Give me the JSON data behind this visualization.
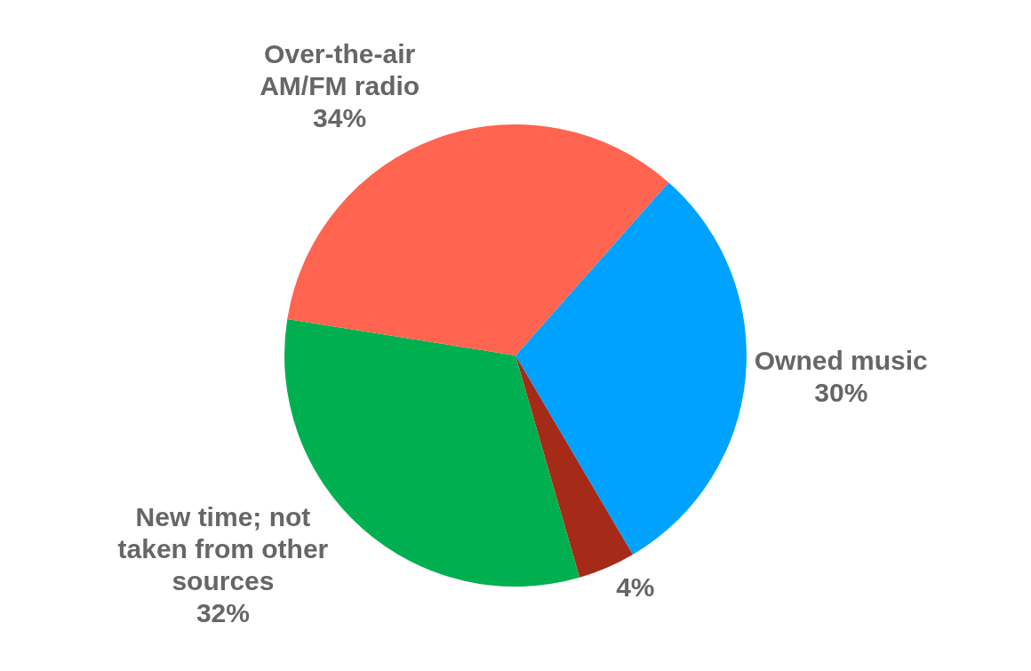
{
  "chart_data": {
    "type": "pie",
    "categories": [
      "Owned music",
      null,
      "New time; not taken from other sources",
      "Over-the-air AM/FM radio"
    ],
    "values": [
      30,
      4,
      32,
      34
    ],
    "value_labels": [
      "30%",
      "4%",
      "32%",
      "34%"
    ],
    "colors": [
      "#00a2ff",
      "#a52a17",
      "#00b050",
      "#ff6450"
    ],
    "legend": false
  }
}
